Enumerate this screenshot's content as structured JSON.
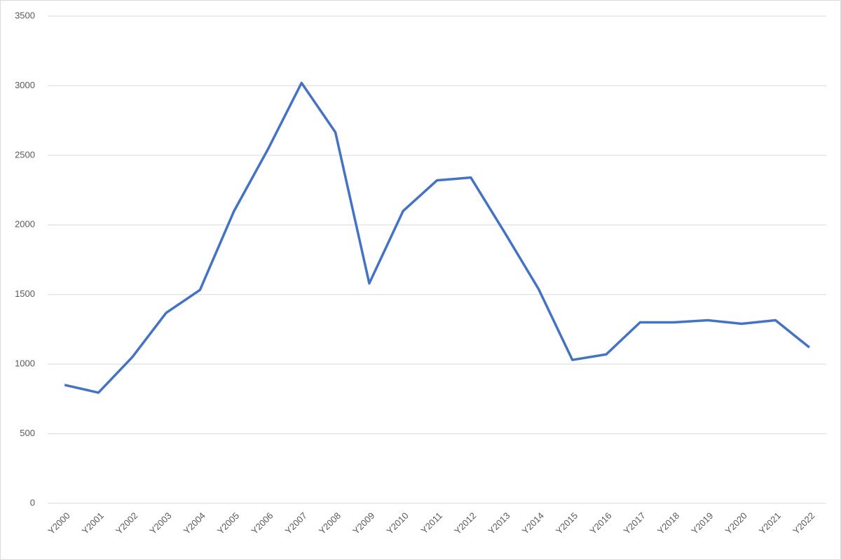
{
  "chart_data": {
    "type": "line",
    "categories": [
      "Y2000",
      "Y2001",
      "Y2002",
      "Y2003",
      "Y2004",
      "Y2005",
      "Y2006",
      "Y2007",
      "Y2008",
      "Y2009",
      "Y2010",
      "Y2011",
      "Y2012",
      "Y2013",
      "Y2014",
      "Y2015",
      "Y2016",
      "Y2017",
      "Y2018",
      "Y2019",
      "Y2020",
      "Y2021",
      "Y2022"
    ],
    "series": [
      {
        "color": "#4472c4",
        "values": [
          850,
          795,
          1050,
          1368,
          1533,
          2097,
          2540,
          3020,
          2665,
          1580,
          2100,
          2320,
          2340,
          1945,
          1540,
          1030,
          1070,
          1300,
          1300,
          1315,
          1290,
          1315,
          1120
        ]
      }
    ],
    "ylim": [
      0,
      3500
    ],
    "yticks": [
      0,
      500,
      1000,
      1500,
      2000,
      2500,
      3000,
      3500
    ],
    "grid": true
  }
}
